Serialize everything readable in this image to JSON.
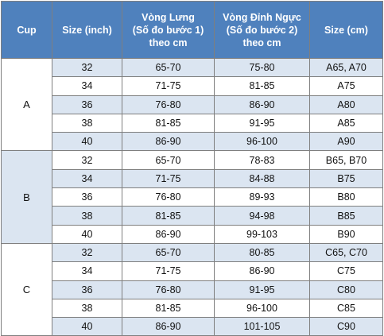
{
  "header": {
    "cup": "Cup",
    "inch": "Size (inch)",
    "lung": [
      "Vòng Lưng",
      "(Số đo bước 1)",
      "theo cm"
    ],
    "nguc": [
      "Vòng Đỉnh Ngực",
      "(Số đo bước 2)",
      "theo cm"
    ],
    "size": "Size (cm)"
  },
  "groups": [
    {
      "cup": "A",
      "rows": [
        {
          "inch": "32",
          "lung": "65-70",
          "nguc": "75-80",
          "size": "A65, A70"
        },
        {
          "inch": "34",
          "lung": "71-75",
          "nguc": "81-85",
          "size": "A75"
        },
        {
          "inch": "36",
          "lung": "76-80",
          "nguc": "86-90",
          "size": "A80"
        },
        {
          "inch": "38",
          "lung": "81-85",
          "nguc": "91-95",
          "size": "A85"
        },
        {
          "inch": "40",
          "lung": "86-90",
          "nguc": "96-100",
          "size": "A90"
        }
      ]
    },
    {
      "cup": "B",
      "rows": [
        {
          "inch": "32",
          "lung": "65-70",
          "nguc": "78-83",
          "size": "B65, B70"
        },
        {
          "inch": "34",
          "lung": "71-75",
          "nguc": "84-88",
          "size": "B75"
        },
        {
          "inch": "36",
          "lung": "76-80",
          "nguc": "89-93",
          "size": "B80"
        },
        {
          "inch": "38",
          "lung": "81-85",
          "nguc": "94-98",
          "size": "B85"
        },
        {
          "inch": "40",
          "lung": "86-90",
          "nguc": "99-103",
          "size": "B90"
        }
      ]
    },
    {
      "cup": "C",
      "rows": [
        {
          "inch": "32",
          "lung": "65-70",
          "nguc": "80-85",
          "size": "C65, C70"
        },
        {
          "inch": "34",
          "lung": "71-75",
          "nguc": "86-90",
          "size": "C75"
        },
        {
          "inch": "36",
          "lung": "76-80",
          "nguc": "91-95",
          "size": "C80"
        },
        {
          "inch": "38",
          "lung": "81-85",
          "nguc": "96-100",
          "size": "C85"
        },
        {
          "inch": "40",
          "lung": "86-90",
          "nguc": "101-105",
          "size": "C90"
        }
      ]
    }
  ],
  "colors": {
    "header_bg": "#4f81bd",
    "header_text": "#ffffff",
    "row_shade": "#dbe5f1",
    "border": "#7f7f7f"
  }
}
